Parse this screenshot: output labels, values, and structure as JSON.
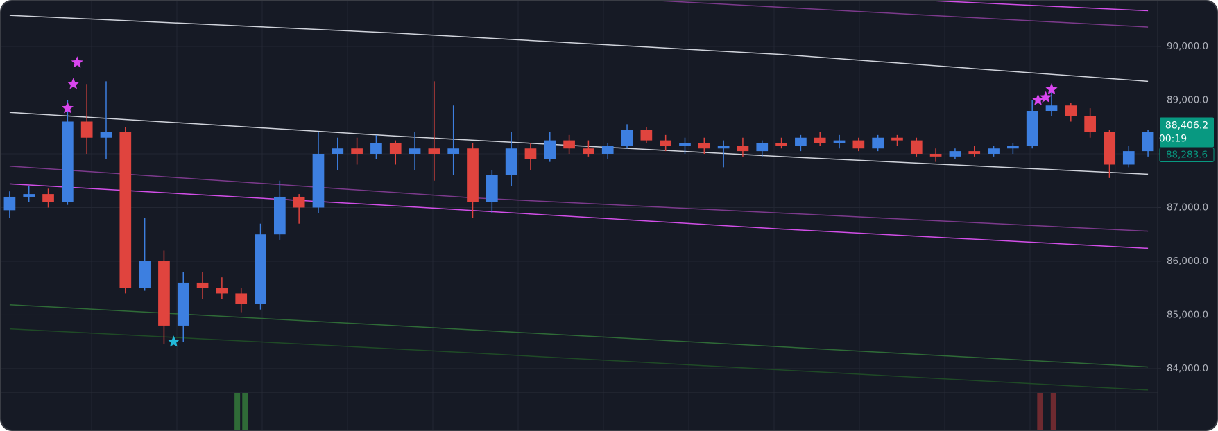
{
  "chart_data": {
    "type": "candlestick",
    "up_color": "#3d7fe0",
    "down_color": "#e0443e",
    "xlim": [
      -0.5,
      59.5
    ],
    "ylim": [
      83560,
      90865
    ],
    "yticks": [
      {
        "value": 84000,
        "label": "84,000.0"
      },
      {
        "value": 85000,
        "label": "85,000.0"
      },
      {
        "value": 86000,
        "label": "86,000.0"
      },
      {
        "value": 87000,
        "label": "87,000.0"
      },
      {
        "value": 88000,
        "label": "88,000.0"
      },
      {
        "value": 89000,
        "label": "89,000.0"
      },
      {
        "value": 90000,
        "label": "90,000.0"
      }
    ],
    "grid": true,
    "open": [
      86950,
      87200,
      87250,
      87100,
      88600,
      88300,
      88400,
      85500,
      86000,
      84800,
      85600,
      85500,
      85400,
      85200,
      86500,
      87200,
      87000,
      88000,
      88100,
      88000,
      88200,
      88000,
      88100,
      88000,
      88100,
      87100,
      87600,
      88100,
      87900,
      88250,
      88100,
      88000,
      88150,
      88450,
      88250,
      88150,
      88200,
      88100,
      88150,
      88050,
      88200,
      88150,
      88300,
      88200,
      88250,
      88100,
      88300,
      88250,
      88000,
      87950,
      88050,
      88000,
      88100,
      88150,
      88800,
      88900,
      88700,
      88400,
      87800,
      88050
    ],
    "high": [
      87300,
      87400,
      87350,
      89000,
      89300,
      89350,
      88500,
      86800,
      86200,
      85800,
      85800,
      85700,
      85500,
      86700,
      87500,
      87250,
      88400,
      88300,
      88300,
      88350,
      88250,
      88400,
      89350,
      88900,
      88200,
      87700,
      88400,
      88200,
      88400,
      88350,
      88250,
      88200,
      88550,
      88500,
      88350,
      88300,
      88300,
      88250,
      88300,
      88250,
      88300,
      88350,
      88400,
      88350,
      88300,
      88350,
      88350,
      88300,
      88100,
      88100,
      88150,
      88150,
      88200,
      89000,
      89200,
      88950,
      88850,
      88450,
      88150,
      88450
    ],
    "low": [
      86800,
      87100,
      87000,
      87050,
      88000,
      87900,
      85400,
      85450,
      84450,
      84500,
      85300,
      85300,
      85050,
      85100,
      86400,
      86700,
      86900,
      87700,
      87800,
      87900,
      87800,
      87700,
      87500,
      87600,
      86800,
      86900,
      87400,
      87700,
      87850,
      88000,
      87950,
      87900,
      88100,
      88200,
      88050,
      88000,
      88000,
      87750,
      87950,
      87950,
      88100,
      88050,
      88150,
      88100,
      88050,
      88050,
      88150,
      87950,
      87850,
      87900,
      87950,
      87950,
      88000,
      88100,
      88700,
      88600,
      88300,
      87550,
      87750,
      87950
    ],
    "close": [
      87200,
      87250,
      87100,
      88600,
      88300,
      88400,
      85500,
      86000,
      84800,
      85600,
      85500,
      85400,
      85200,
      86500,
      87200,
      87000,
      88000,
      88100,
      88000,
      88200,
      88000,
      88100,
      88000,
      88100,
      87100,
      87600,
      88100,
      87900,
      88250,
      88100,
      88000,
      88150,
      88450,
      88250,
      88150,
      88200,
      88100,
      88150,
      88050,
      88200,
      88150,
      88300,
      88200,
      88250,
      88100,
      88300,
      88250,
      88000,
      87950,
      88050,
      88000,
      88100,
      88150,
      88800,
      88900,
      88700,
      88400,
      87800,
      88050,
      88406.2
    ],
    "bands": [
      {
        "color": "#d1d4dc",
        "x": [
          0,
          20,
          40,
          59
        ],
        "values": [
          90580,
          90250,
          89850,
          89350
        ]
      },
      {
        "color": "#d1d4dc",
        "x": [
          0,
          20,
          40,
          59
        ],
        "values": [
          88770,
          88330,
          87950,
          87620
        ]
      },
      {
        "color": "#d24fe8",
        "x": [
          47,
          59
        ],
        "values": [
          90865,
          90665
        ]
      },
      {
        "color": "#7c3a8c",
        "x": [
          33,
          59
        ],
        "values": [
          90865,
          90360
        ]
      },
      {
        "color": "#d24fe8",
        "x": [
          0,
          20,
          40,
          59
        ],
        "values": [
          87440,
          87030,
          86600,
          86240
        ]
      },
      {
        "color": "#7c3a8c",
        "x": [
          0,
          24,
          59
        ],
        "values": [
          87770,
          87180,
          86560
        ]
      },
      {
        "color": "#2f6b37",
        "x": [
          0,
          24,
          59
        ],
        "values": [
          85190,
          84720,
          84030
        ]
      },
      {
        "color": "#1f4a26",
        "x": [
          0,
          24,
          59
        ],
        "values": [
          84740,
          84290,
          83600
        ]
      }
    ],
    "markers": [
      {
        "x": 3.0,
        "y": 88850,
        "color": "#d946ef"
      },
      {
        "x": 3.3,
        "y": 89300,
        "color": "#d946ef"
      },
      {
        "x": 3.5,
        "y": 89700,
        "color": "#d946ef"
      },
      {
        "x": 8.5,
        "y": 84500,
        "color": "#22b8d8"
      },
      {
        "x": 53.3,
        "y": 89000,
        "color": "#d946ef"
      },
      {
        "x": 53.7,
        "y": 89050,
        "color": "#d946ef"
      },
      {
        "x": 54.0,
        "y": 89200,
        "color": "#d946ef"
      }
    ],
    "signals": [
      {
        "x": 11.8,
        "color": "#2f6b37"
      },
      {
        "x": 12.2,
        "color": "#2f6b37"
      },
      {
        "x": 53.4,
        "color": "#6e2a30"
      },
      {
        "x": 54.1,
        "color": "#6e2a30"
      }
    ],
    "last_price": {
      "value": 88406.2,
      "label": "88,406.2"
    },
    "countdown": "00:19",
    "second_price": {
      "value": 88283.6,
      "label": "88,283.6"
    },
    "tag_color": "#089981"
  }
}
